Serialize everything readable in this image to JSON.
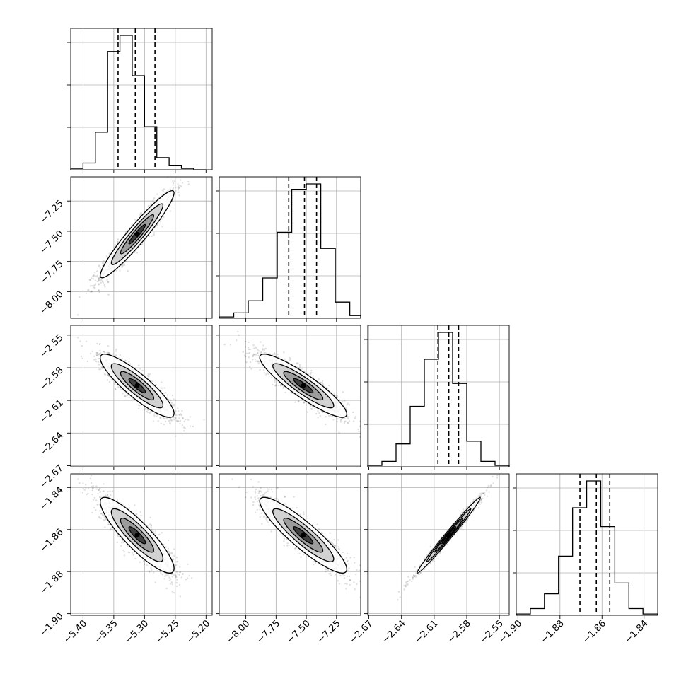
{
  "chart_data": {
    "type": "corner",
    "grid": true,
    "colors": {
      "samples": "#000000",
      "grid": "#b0b0b0",
      "axes": "#000000"
    },
    "parameters": [
      {
        "range": [
          -5.42,
          -5.19
        ],
        "ticks": [
          -5.4,
          -5.35,
          -5.3,
          -5.25,
          -5.2
        ],
        "tick_labels": [
          "−5.40",
          "−5.35",
          "−5.30",
          "−5.25",
          "−5.20"
        ],
        "quantiles": [
          -5.343,
          -5.315,
          -5.283
        ]
      },
      {
        "range": [
          -8.22,
          -7.05
        ],
        "ticks": [
          -8.0,
          -7.75,
          -7.5,
          -7.25
        ],
        "tick_labels": [
          "−8.00",
          "−7.75",
          "−7.50",
          "−7.25"
        ],
        "quantiles": [
          -7.645,
          -7.515,
          -7.415
        ]
      },
      {
        "range": [
          -2.671,
          -2.541
        ],
        "ticks": [
          -2.67,
          -2.64,
          -2.61,
          -2.58,
          -2.55
        ],
        "tick_labels": [
          "−2.67",
          "−2.64",
          "−2.61",
          "−2.58",
          "−2.55"
        ],
        "quantiles": [
          -2.6065,
          -2.5965,
          -2.5875
        ]
      },
      {
        "range": [
          -1.9008,
          -1.8335
        ],
        "ticks": [
          -1.9,
          -1.88,
          -1.86,
          -1.84
        ],
        "tick_labels": [
          "−1.90",
          "−1.88",
          "−1.86",
          "−1.84"
        ],
        "quantiles": [
          -1.8705,
          -1.8627,
          -1.8563
        ]
      }
    ],
    "histograms": [
      {
        "param": 0,
        "bins": [
          -5.42,
          -5.4,
          -5.38,
          -5.36,
          -5.34,
          -5.32,
          -5.3,
          -5.28,
          -5.26,
          -5.24,
          -5.22,
          -5.2
        ],
        "values": [
          0.01,
          0.05,
          0.28,
          0.88,
          1.0,
          0.7,
          0.32,
          0.09,
          0.03,
          0.01,
          0.0
        ]
      },
      {
        "param": 1,
        "bins": [
          -8.22,
          -8.1,
          -7.98,
          -7.86,
          -7.74,
          -7.62,
          -7.5,
          -7.38,
          -7.26,
          -7.14,
          -7.05
        ],
        "values": [
          0.01,
          0.04,
          0.13,
          0.3,
          0.64,
          0.96,
          1.0,
          0.52,
          0.12,
          0.02
        ]
      },
      {
        "param": 2,
        "bins": [
          -2.671,
          -2.658,
          -2.645,
          -2.632,
          -2.619,
          -2.606,
          -2.593,
          -2.58,
          -2.567,
          -2.554,
          -2.541
        ],
        "values": [
          0.01,
          0.04,
          0.17,
          0.45,
          0.8,
          1.0,
          0.62,
          0.19,
          0.04,
          0.01
        ]
      },
      {
        "param": 3,
        "bins": [
          -1.9008,
          -1.8941,
          -1.8874,
          -1.8807,
          -1.874,
          -1.8673,
          -1.8606,
          -1.8539,
          -1.8472,
          -1.8405,
          -1.8335
        ],
        "values": [
          0.01,
          0.05,
          0.16,
          0.44,
          0.8,
          1.0,
          0.66,
          0.24,
          0.05,
          0.01
        ]
      }
    ],
    "pairs": [
      {
        "x": 0,
        "y": 1,
        "mean": [
          -5.312,
          -7.525
        ],
        "std": [
          0.03,
          0.18
        ],
        "corr": 0.95
      },
      {
        "x": 0,
        "y": 2,
        "mean": [
          -5.312,
          -2.5965
        ],
        "std": [
          0.03,
          0.0145
        ],
        "corr": -0.88
      },
      {
        "x": 1,
        "y": 2,
        "mean": [
          -7.525,
          -2.5965
        ],
        "std": [
          0.18,
          0.0145
        ],
        "corr": -0.9
      },
      {
        "x": 0,
        "y": 3,
        "mean": [
          -5.312,
          -1.8627
        ],
        "std": [
          0.03,
          0.009
        ],
        "corr": -0.88
      },
      {
        "x": 1,
        "y": 3,
        "mean": [
          -7.525,
          -1.8627
        ],
        "std": [
          0.18,
          0.009
        ],
        "corr": -0.9
      },
      {
        "x": 2,
        "y": 3,
        "mean": [
          -2.5965,
          -1.8627
        ],
        "std": [
          0.0145,
          0.009
        ],
        "corr": 0.99
      }
    ]
  }
}
